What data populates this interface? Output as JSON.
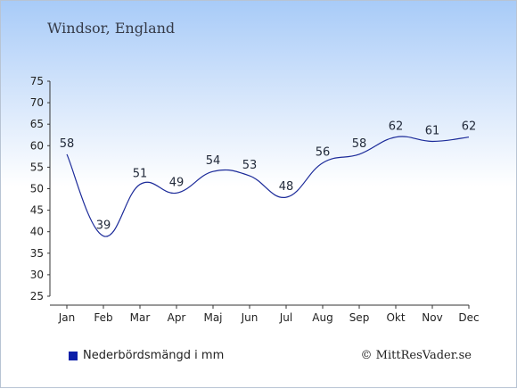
{
  "title": "Windsor, England",
  "credit": "© MittResVader.se",
  "colors": {
    "line": "#1b2a99",
    "legend": "#0b1ea8"
  },
  "chart_data": {
    "type": "line",
    "categories": [
      "Jan",
      "Feb",
      "Mar",
      "Apr",
      "Maj",
      "Jun",
      "Jul",
      "Aug",
      "Sep",
      "Okt",
      "Nov",
      "Dec"
    ],
    "series": [
      {
        "name": "Nederbördsmängd i mm",
        "values": [
          58,
          39,
          51,
          49,
          54,
          53,
          48,
          56,
          58,
          62,
          61,
          62
        ]
      }
    ],
    "ylim": [
      25,
      75
    ],
    "yticks": [
      25,
      30,
      35,
      40,
      45,
      50,
      55,
      60,
      65,
      70,
      75
    ],
    "grid": false,
    "legend": "bottom-left"
  }
}
